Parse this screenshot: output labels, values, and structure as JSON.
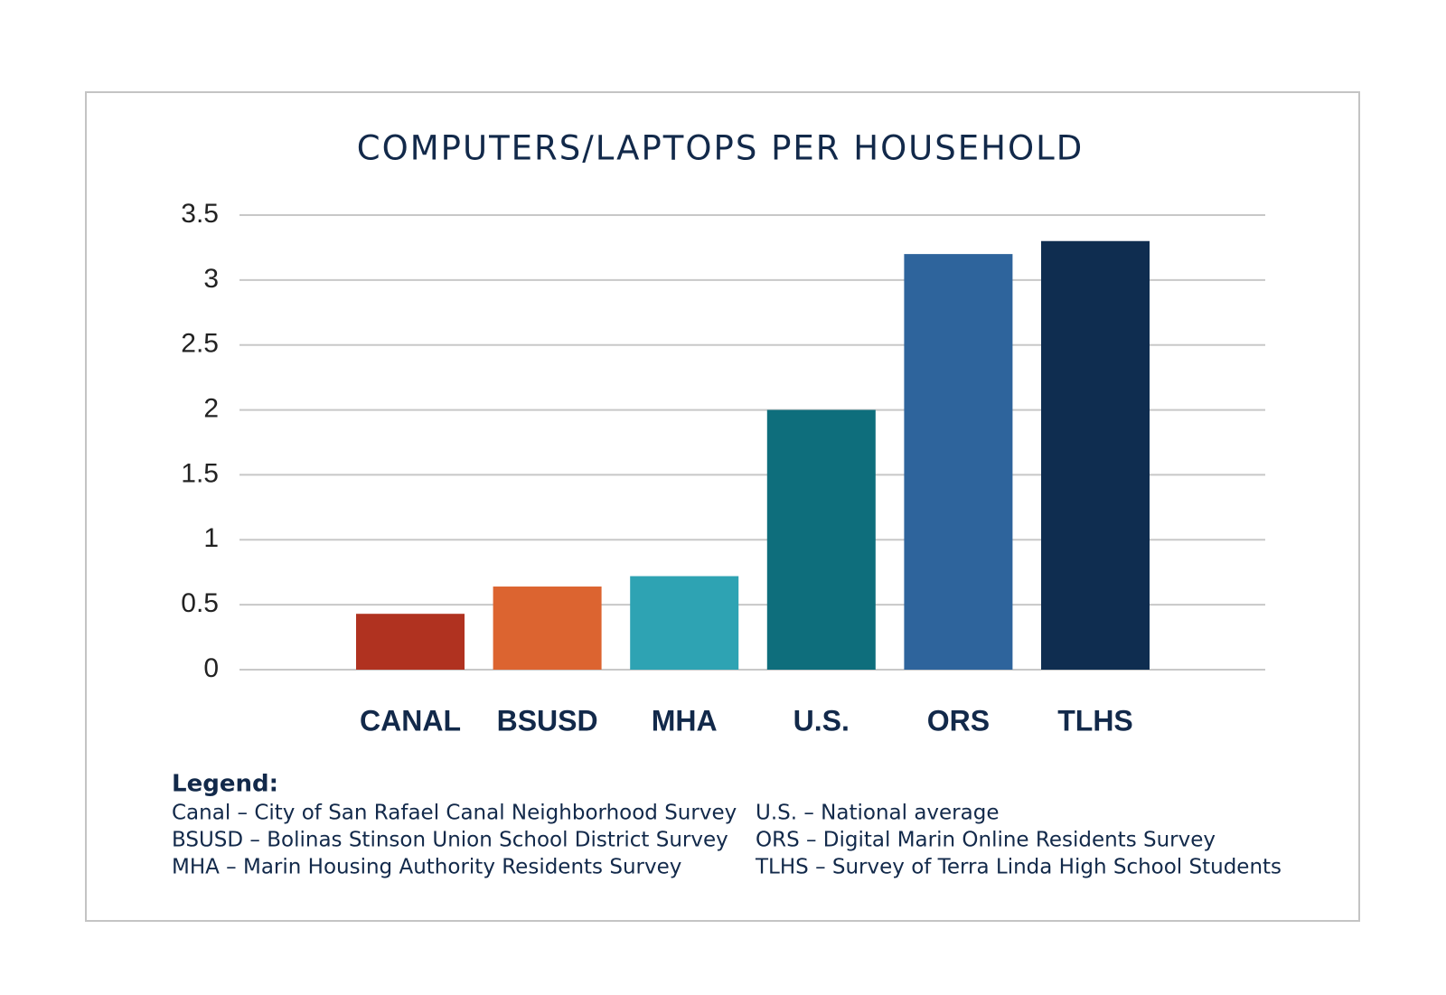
{
  "chart_data": {
    "type": "bar",
    "title": "COMPUTERS/LAPTOPS PER HOUSEHOLD",
    "categories": [
      "CANAL",
      "BSUSD",
      "MHA",
      "U.S.",
      "ORS",
      "TLHS"
    ],
    "values": [
      0.43,
      0.64,
      0.72,
      2,
      3.2,
      3.3
    ],
    "colors": [
      "#b03220",
      "#dc6430",
      "#2ea3b3",
      "#0e6e7c",
      "#2e649c",
      "#0f2d50"
    ],
    "ylim": [
      0,
      3.5
    ],
    "yticks": [
      0,
      0.5,
      1,
      1.5,
      2,
      2.5,
      3,
      3.5
    ],
    "grid": true,
    "notes": {
      "title": "Legend:",
      "items": [
        "Canal – City of San Rafael Canal Neighborhood Survey",
        "BSUSD – Bolinas Stinson Union School District Survey",
        "MHA – Marin Housing Authority Residents Survey",
        "U.S. – National average",
        "ORS – Digital Marin Online Residents Survey",
        "TLHS – Survey of Terra Linda High School Students"
      ]
    }
  }
}
